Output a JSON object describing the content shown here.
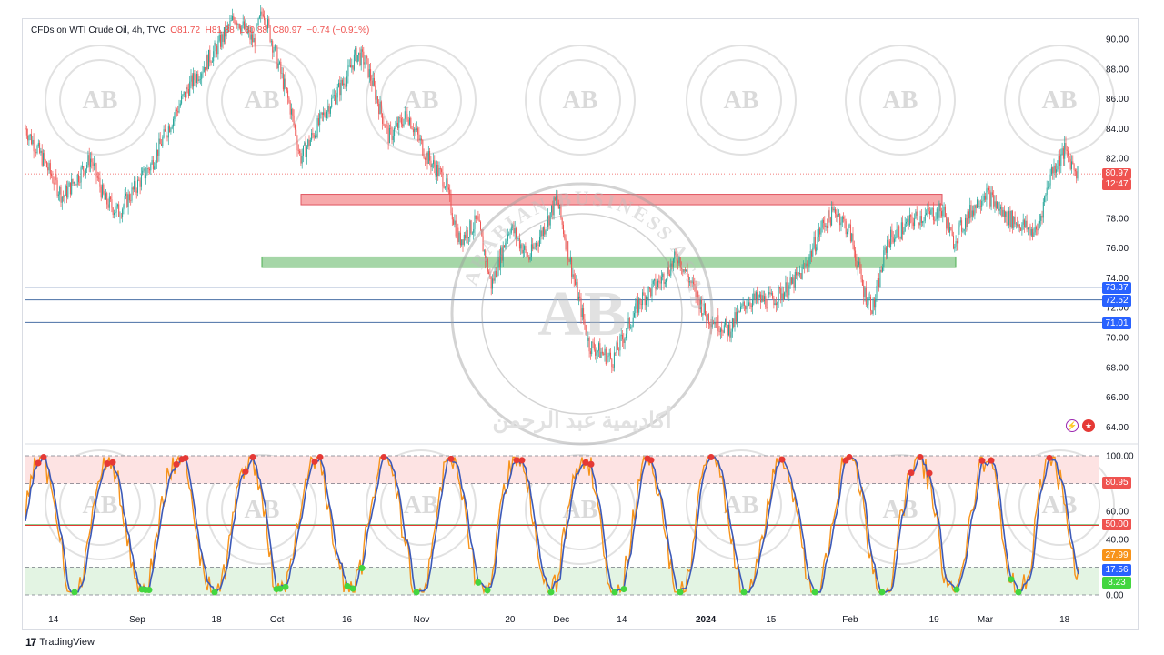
{
  "app": {
    "brand": "TradingView"
  },
  "legend": {
    "symbol": "CFDs on WTI Crude Oil, 4h, TVC",
    "open_label": "O",
    "open": "81.72",
    "high_label": "H",
    "high": "81.88",
    "low_label": "L",
    "low": "80.88",
    "close_label": "C",
    "close": "80.97",
    "change": "−0.74 (−0.91%)"
  },
  "price_tags": {
    "last": "80.97",
    "countdown": "12:47",
    "l1": "73.37",
    "l2": "72.52",
    "l3": "71.01"
  },
  "osc_tags": {
    "upper": "80.95",
    "mid": "50.00",
    "k": "27.99",
    "d": "17.56",
    "low": "8.23"
  },
  "chart_data": [
    {
      "type": "candlestick",
      "symbol": "CFDs on WTI Crude Oil, 4h, TVC",
      "y_ticks": [
        "90.00",
        "88.00",
        "86.00",
        "84.00",
        "82.00",
        "78.00",
        "76.00",
        "74.00",
        "72.00",
        "70.00",
        "68.00",
        "66.00",
        "64.00"
      ],
      "x_ticks": [
        "14",
        "Sep",
        "18",
        "Oct",
        "16",
        "Nov",
        "20",
        "Dec",
        "14",
        "2024",
        "15",
        "Feb",
        "19",
        "Mar",
        "18"
      ],
      "ylim": [
        63.5,
        92
      ],
      "path_points": [
        {
          "date": "Aug 8",
          "price": 84.0
        },
        {
          "date": "Aug 12",
          "price": 81.8
        },
        {
          "date": "Aug 16",
          "price": 79.4
        },
        {
          "date": "Aug 22",
          "price": 82.0
        },
        {
          "date": "Aug 25",
          "price": 79.2
        },
        {
          "date": "Aug 28",
          "price": 78.4
        },
        {
          "date": "Sep 4",
          "price": 81.6
        },
        {
          "date": "Sep 8",
          "price": 84.3
        },
        {
          "date": "Sep 12",
          "price": 86.8
        },
        {
          "date": "Sep 18",
          "price": 89.4
        },
        {
          "date": "Sep 22",
          "price": 91.5
        },
        {
          "date": "Sep 26",
          "price": 89.8
        },
        {
          "date": "Sep 28",
          "price": 92.0
        },
        {
          "date": "Oct 4",
          "price": 85.2
        },
        {
          "date": "Oct 6",
          "price": 82.0
        },
        {
          "date": "Oct 12",
          "price": 85.5
        },
        {
          "date": "Oct 16",
          "price": 87.5
        },
        {
          "date": "Oct 18",
          "price": 89.0
        },
        {
          "date": "Oct 20",
          "price": 88.5
        },
        {
          "date": "Oct 25",
          "price": 83.4
        },
        {
          "date": "Oct 29",
          "price": 85.0
        },
        {
          "date": "Nov 2",
          "price": 82.2
        },
        {
          "date": "Nov 6",
          "price": 80.5
        },
        {
          "date": "Nov 9",
          "price": 76.5
        },
        {
          "date": "Nov 13",
          "price": 77.8
        },
        {
          "date": "Nov 16",
          "price": 73.5
        },
        {
          "date": "Nov 20",
          "price": 77.5
        },
        {
          "date": "Nov 24",
          "price": 75.3
        },
        {
          "date": "Nov 28",
          "price": 77.8
        },
        {
          "date": "Nov 30",
          "price": 79.3
        },
        {
          "date": "Dec 4",
          "price": 73.5
        },
        {
          "date": "Dec 7",
          "price": 69.5
        },
        {
          "date": "Dec 12",
          "price": 68.5
        },
        {
          "date": "Dec 18",
          "price": 72.5
        },
        {
          "date": "Dec 22",
          "price": 73.7
        },
        {
          "date": "Dec 26",
          "price": 75.5
        },
        {
          "date": "Jan 1",
          "price": 71.5
        },
        {
          "date": "Jan 6",
          "price": 70.5
        },
        {
          "date": "Jan 10",
          "price": 72.5
        },
        {
          "date": "Jan 15",
          "price": 72.5
        },
        {
          "date": "Jan 19",
          "price": 73.4
        },
        {
          "date": "Jan 22",
          "price": 74.5
        },
        {
          "date": "Jan 26",
          "price": 77.5
        },
        {
          "date": "Jan 29",
          "price": 78.5
        },
        {
          "date": "Feb 1",
          "price": 77.0
        },
        {
          "date": "Feb 4",
          "price": 73.0
        },
        {
          "date": "Feb 6",
          "price": 72.0
        },
        {
          "date": "Feb 9",
          "price": 76.5
        },
        {
          "date": "Feb 15",
          "price": 78.0
        },
        {
          "date": "Feb 21",
          "price": 78.5
        },
        {
          "date": "Feb 23",
          "price": 76.4
        },
        {
          "date": "Feb 27",
          "price": 78.5
        },
        {
          "date": "Mar 1",
          "price": 79.8
        },
        {
          "date": "Mar 5",
          "price": 78.2
        },
        {
          "date": "Mar 9",
          "price": 77.5
        },
        {
          "date": "Mar 12",
          "price": 77.0
        },
        {
          "date": "Mar 15",
          "price": 81.0
        },
        {
          "date": "Mar 18",
          "price": 82.5
        },
        {
          "date": "Mar 21",
          "price": 80.97
        }
      ],
      "zones": [
        {
          "name": "resistance",
          "from": 78.9,
          "to": 79.6,
          "color": "#f7a9ab",
          "border": "#e05560"
        },
        {
          "name": "support",
          "from": 74.7,
          "to": 75.4,
          "color": "#a5d6a7",
          "border": "#4caf50"
        }
      ],
      "levels": [
        73.37,
        72.52,
        71.01
      ],
      "last_price": 80.97,
      "up_color": "#26a69a",
      "down_color": "#ef5350"
    },
    {
      "type": "line",
      "name": "stochastic oscillator",
      "y_ticks": [
        "100.00",
        "60.00",
        "40.00",
        "20.00",
        "0.00"
      ],
      "ylim": [
        0,
        100
      ],
      "bands": {
        "overbought": [
          80,
          100
        ],
        "oversold": [
          0,
          20
        ]
      },
      "lines": {
        "upper": 80.95,
        "mid": 50.0,
        "k": 27.99,
        "d": 17.56,
        "low": 8.23
      },
      "colors": {
        "k": "#f7931a",
        "d": "#3d5ab8",
        "peak": "#e53935",
        "trough": "#43d640"
      }
    }
  ],
  "watermark": {
    "monogram": "AB",
    "name": "ARABIAN BUSINESS ACADEMY",
    "arabic": "أكاديمية عبد الرحمن"
  },
  "colors": {
    "accent_up": "#26a69a",
    "accent_down": "#ef5350",
    "level_line": "#4a6fa5"
  }
}
